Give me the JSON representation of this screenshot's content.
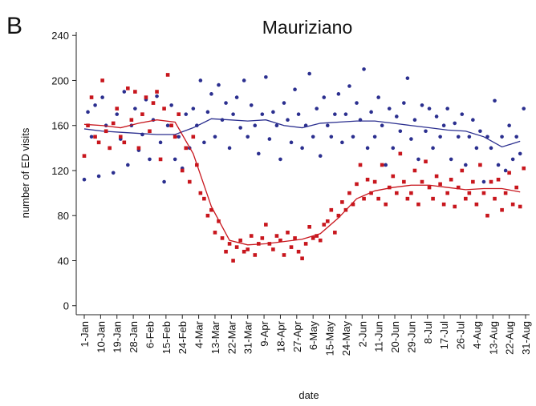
{
  "chart_data": {
    "type": "scatter",
    "panel_label": "B",
    "title": "Mauriziano",
    "x_label": "date",
    "y_label": "number of ED visits",
    "xlim": [
      0,
      243
    ],
    "xticks": [
      {
        "value": 0,
        "label": "1-Jan"
      },
      {
        "value": 9,
        "label": "10-Jan"
      },
      {
        "value": 18,
        "label": "19-Jan"
      },
      {
        "value": 27,
        "label": "28-Jan"
      },
      {
        "value": 36,
        "label": "6-Feb"
      },
      {
        "value": 45,
        "label": "15-Feb"
      },
      {
        "value": 54,
        "label": "24-Feb"
      },
      {
        "value": 63,
        "label": "4-Mar"
      },
      {
        "value": 72,
        "label": "13-Mar"
      },
      {
        "value": 81,
        "label": "22-Mar"
      },
      {
        "value": 90,
        "label": "31-Mar"
      },
      {
        "value": 99,
        "label": "9-Apr"
      },
      {
        "value": 108,
        "label": "18-Apr"
      },
      {
        "value": 117,
        "label": "27-Apr"
      },
      {
        "value": 126,
        "label": "6-May"
      },
      {
        "value": 135,
        "label": "15-May"
      },
      {
        "value": 144,
        "label": "24-May"
      },
      {
        "value": 153,
        "label": "2-Jun"
      },
      {
        "value": 162,
        "label": "11-Jun"
      },
      {
        "value": 171,
        "label": "20-Jun"
      },
      {
        "value": 180,
        "label": "29-Jun"
      },
      {
        "value": 189,
        "label": "8-Jul"
      },
      {
        "value": 198,
        "label": "17-Jul"
      },
      {
        "value": 207,
        "label": "26-Jul"
      },
      {
        "value": 216,
        "label": "4-Aug"
      },
      {
        "value": 225,
        "label": "13-Aug"
      },
      {
        "value": 234,
        "label": "22-Aug"
      },
      {
        "value": 243,
        "label": "31-Aug"
      }
    ],
    "ylim": [
      -8,
      243
    ],
    "yticks": [
      0,
      40,
      80,
      120,
      160,
      200,
      240
    ],
    "x": [
      0,
      2,
      4,
      6,
      8,
      10,
      12,
      14,
      16,
      18,
      20,
      22,
      24,
      26,
      28,
      30,
      32,
      34,
      36,
      38,
      40,
      42,
      44,
      46,
      48,
      50,
      52,
      54,
      56,
      58,
      60,
      62,
      64,
      66,
      68,
      70,
      72,
      74,
      76,
      78,
      80,
      82,
      84,
      86,
      88,
      90,
      92,
      94,
      96,
      98,
      100,
      102,
      104,
      106,
      108,
      110,
      112,
      114,
      116,
      118,
      120,
      122,
      124,
      126,
      128,
      130,
      132,
      134,
      136,
      138,
      140,
      142,
      144,
      146,
      148,
      150,
      152,
      154,
      156,
      158,
      160,
      162,
      164,
      166,
      168,
      170,
      172,
      174,
      176,
      178,
      180,
      182,
      184,
      186,
      188,
      190,
      192,
      194,
      196,
      198,
      200,
      202,
      204,
      206,
      208,
      210,
      212,
      214,
      216,
      218,
      220,
      222,
      224,
      226,
      228,
      230,
      232,
      234,
      236,
      238,
      240,
      242
    ],
    "trend_x": [
      0,
      10,
      20,
      30,
      40,
      50,
      60,
      70,
      80,
      90,
      100,
      110,
      120,
      130,
      140,
      150,
      160,
      170,
      180,
      190,
      200,
      210,
      220,
      230,
      240
    ],
    "series": [
      {
        "color": "#2b2f8f",
        "marker": "circle",
        "values": [
          112,
          172,
          150,
          178,
          115,
          185,
          160,
          140,
          118,
          170,
          148,
          190,
          125,
          160,
          175,
          138,
          152,
          183,
          130,
          165,
          186,
          145,
          110,
          160,
          178,
          130,
          150,
          122,
          170,
          140,
          175,
          160,
          200,
          145,
          172,
          188,
          150,
          196,
          165,
          180,
          140,
          170,
          185,
          158,
          200,
          150,
          178,
          160,
          135,
          170,
          203,
          148,
          172,
          160,
          130,
          180,
          165,
          145,
          192,
          170,
          140,
          160,
          206,
          150,
          175,
          133,
          185,
          160,
          150,
          170,
          188,
          145,
          170,
          195,
          150,
          180,
          165,
          210,
          140,
          172,
          150,
          185,
          160,
          125,
          175,
          140,
          168,
          155,
          180,
          202,
          148,
          165,
          130,
          178,
          155,
          175,
          140,
          168,
          150,
          160,
          175,
          130,
          162,
          150,
          170,
          125,
          150,
          165,
          140,
          155,
          110,
          150,
          140,
          182,
          125,
          150,
          120,
          160,
          130,
          150,
          135,
          175
        ],
        "trend": [
          157,
          155,
          154,
          153,
          152,
          152,
          158,
          166,
          165,
          164,
          165,
          160,
          158,
          162,
          163,
          164,
          164,
          162,
          160,
          158,
          156,
          155,
          150,
          141,
          146
        ]
      },
      {
        "color": "#c8161d",
        "marker": "square",
        "values": [
          133,
          160,
          185,
          150,
          145,
          200,
          155,
          140,
          162,
          175,
          150,
          145,
          193,
          165,
          190,
          140,
          170,
          185,
          155,
          180,
          190,
          130,
          175,
          205,
          160,
          150,
          170,
          120,
          140,
          110,
          150,
          125,
          100,
          95,
          80,
          85,
          65,
          75,
          60,
          48,
          55,
          40,
          52,
          58,
          48,
          50,
          62,
          45,
          55,
          60,
          72,
          55,
          50,
          62,
          58,
          45,
          65,
          52,
          60,
          48,
          42,
          55,
          70,
          60,
          62,
          58,
          72,
          75,
          85,
          65,
          80,
          92,
          85,
          100,
          90,
          108,
          125,
          95,
          112,
          100,
          110,
          95,
          125,
          90,
          105,
          115,
          100,
          135,
          110,
          95,
          100,
          120,
          90,
          110,
          128,
          105,
          95,
          115,
          108,
          90,
          100,
          112,
          88,
          105,
          120,
          95,
          100,
          110,
          90,
          125,
          100,
          80,
          110,
          95,
          112,
          85,
          100,
          118,
          90,
          105,
          88,
          122
        ],
        "trend": [
          161,
          160,
          158,
          162,
          165,
          163,
          135,
          88,
          58,
          54,
          55,
          57,
          59,
          64,
          78,
          95,
          102,
          105,
          107,
          107,
          105,
          103,
          104,
          104,
          101
        ]
      }
    ]
  }
}
